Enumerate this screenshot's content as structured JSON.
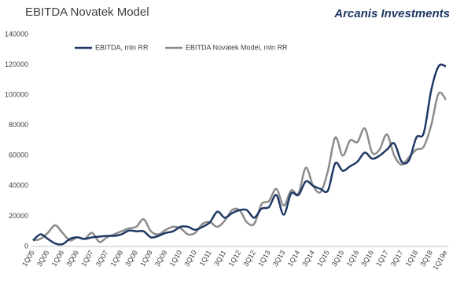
{
  "chart_data": {
    "type": "line",
    "title": "EBITDA Novatek Model",
    "brand": "Arcanis Investments",
    "categories": [
      "1Q05",
      null,
      "3Q05",
      null,
      "1Q06",
      null,
      "3Q06",
      null,
      "1Q07",
      null,
      "3Q07",
      null,
      "1Q08",
      null,
      "3Q08",
      null,
      "1Q09",
      null,
      "3Q09",
      null,
      "1Q10",
      null,
      "3Q10",
      null,
      "1Q11",
      null,
      "3Q11",
      null,
      "1Q12",
      null,
      "3Q12",
      null,
      "1Q13",
      null,
      "3Q13",
      null,
      "1Q14",
      null,
      "3Q14",
      null,
      "1Q15",
      null,
      "3Q15",
      null,
      "1Q16",
      null,
      "3Q16",
      null,
      "1Q17",
      null,
      "3Q17",
      null,
      "1Q18",
      null,
      "3Q18",
      null,
      "1Q19e"
    ],
    "series": [
      {
        "name": "EBITDA, mln RR",
        "color": "#1f3864",
        "values": [
          4000,
          8000,
          5000,
          2000,
          1500,
          5000,
          6000,
          5000,
          6000,
          6500,
          7000,
          7000,
          8000,
          10500,
          10000,
          10000,
          6000,
          7000,
          9000,
          10000,
          13000,
          13000,
          11000,
          13000,
          16000,
          23000,
          19000,
          22000,
          24000,
          24000,
          19000,
          25000,
          26000,
          34000,
          21000,
          35000,
          34000,
          43000,
          40000,
          38000,
          37000,
          55000,
          50000,
          53000,
          56000,
          62000,
          58000,
          60000,
          64000,
          68000,
          56000,
          57000,
          72000,
          75000,
          103000,
          119000,
          119000
        ]
      },
      {
        "name": "EBITDA Novatek Model, mln RR",
        "color": "#8c8c8c",
        "values": [
          4000,
          5000,
          9000,
          14000,
          9000,
          4000,
          6000,
          5000,
          9000,
          3000,
          6000,
          8000,
          10000,
          12000,
          13000,
          18000,
          10000,
          8000,
          11000,
          13000,
          12000,
          8000,
          9000,
          15000,
          16000,
          13000,
          17000,
          24000,
          24000,
          16000,
          15000,
          28000,
          30000,
          38000,
          27000,
          37000,
          35000,
          52000,
          40000,
          36000,
          50000,
          72000,
          60000,
          70000,
          69000,
          78000,
          62000,
          64000,
          74000,
          60000,
          54000,
          59000,
          64000,
          66000,
          80000,
          101000,
          97000
        ]
      }
    ],
    "ylim": [
      0,
      140000
    ],
    "yticks": [
      0,
      20000,
      40000,
      60000,
      80000,
      100000,
      120000,
      140000
    ],
    "grid": false
  }
}
